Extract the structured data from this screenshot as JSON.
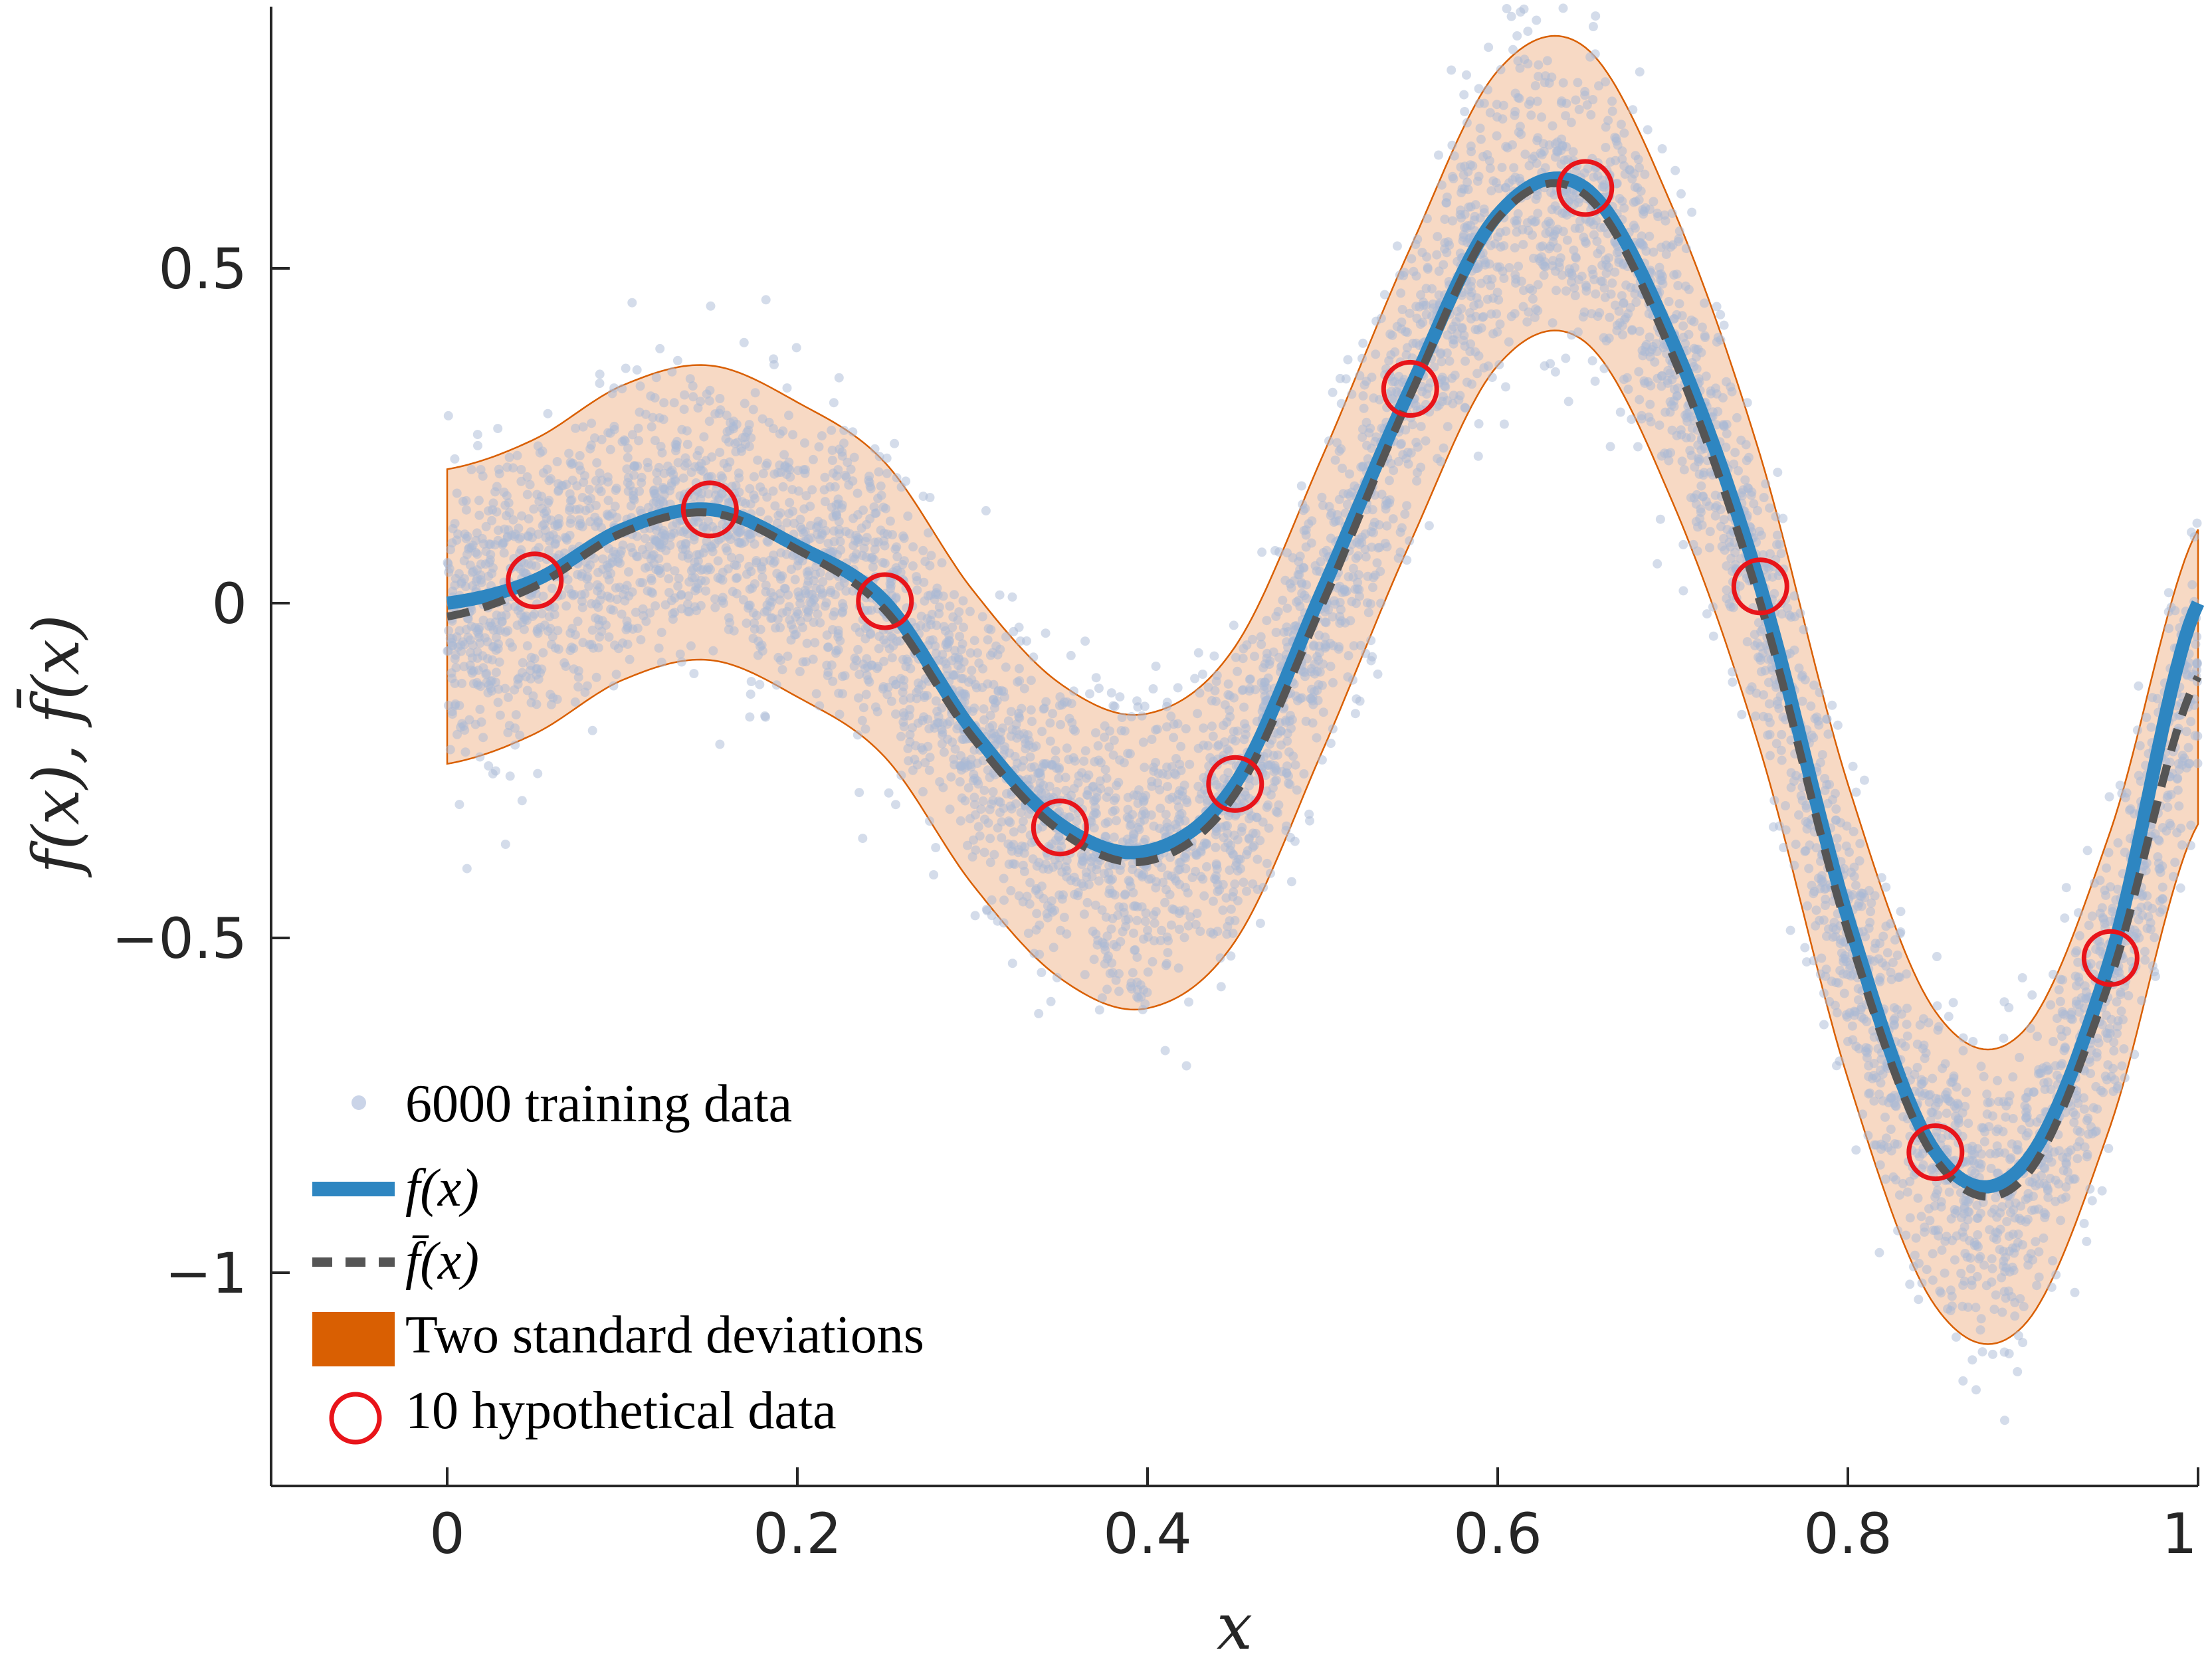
{
  "chart_data": {
    "type": "scatter",
    "xlabel": "x",
    "ylabel": "f(x), f̄(x)",
    "xlim": [
      -0.1,
      1.0
    ],
    "ylim": [
      -1.3,
      0.9
    ],
    "xticks": [
      0,
      0.2,
      0.4,
      0.6,
      0.8,
      1
    ],
    "xtick_labels": [
      "0",
      "0.2",
      "0.4",
      "0.6",
      "0.8",
      "1"
    ],
    "yticks": [
      -1,
      -0.5,
      0,
      0.5
    ],
    "ytick_labels": [
      "−1",
      "−0.5",
      "0",
      "0.5"
    ],
    "grid": false,
    "legend_position": "bottom-left",
    "series": [
      {
        "name": "6000 training data",
        "kind": "scatter",
        "count": 6000,
        "color": "#a9b9d6",
        "spread_std": 0.11
      },
      {
        "name": "f(x)",
        "kind": "line",
        "color": "#2e86c1",
        "x": [
          0,
          0.05,
          0.1,
          0.15,
          0.2,
          0.25,
          0.3,
          0.35,
          0.4,
          0.45,
          0.5,
          0.55,
          0.6,
          0.65,
          0.7,
          0.75,
          0.8,
          0.85,
          0.9,
          0.95,
          1.0
        ],
        "y": [
          0.0,
          0.034,
          0.11,
          0.14,
          0.085,
          0.002,
          -0.19,
          -0.33,
          -0.37,
          -0.27,
          0.02,
          0.32,
          0.58,
          0.62,
          0.39,
          0.025,
          -0.47,
          -0.82,
          -0.84,
          -0.53,
          0.0
        ]
      },
      {
        "name": "f̄(x)",
        "kind": "dashed-line",
        "color": "#555555",
        "x": [
          0,
          0.05,
          0.1,
          0.15,
          0.2,
          0.25,
          0.3,
          0.35,
          0.4,
          0.45,
          0.5,
          0.55,
          0.6,
          0.65,
          0.7,
          0.75,
          0.8,
          0.85,
          0.9,
          0.95,
          1.0
        ],
        "y": [
          -0.02,
          0.025,
          0.105,
          0.135,
          0.08,
          -0.01,
          -0.2,
          -0.34,
          -0.385,
          -0.285,
          0.0,
          0.31,
          0.575,
          0.61,
          0.37,
          0.0,
          -0.49,
          -0.83,
          -0.86,
          -0.56,
          -0.11
        ]
      },
      {
        "name": "Two standard deviations",
        "kind": "band",
        "color": "#d95f02",
        "half_width": 0.22
      },
      {
        "name": "10 hypothetical data",
        "kind": "circles",
        "color": "#e8141a",
        "x": [
          0.05,
          0.15,
          0.25,
          0.35,
          0.45,
          0.55,
          0.65,
          0.75,
          0.85,
          0.95
        ],
        "y": [
          0.034,
          0.14,
          0.003,
          -0.335,
          -0.27,
          0.32,
          0.62,
          0.025,
          -0.82,
          -0.53
        ]
      }
    ]
  },
  "legend": {
    "scatter_label": "6000 training data",
    "f_label": "f(x)",
    "fbar_label": "f̄(x)",
    "band_label": "Two standard deviations",
    "circle_label": "10 hypothetical data"
  }
}
